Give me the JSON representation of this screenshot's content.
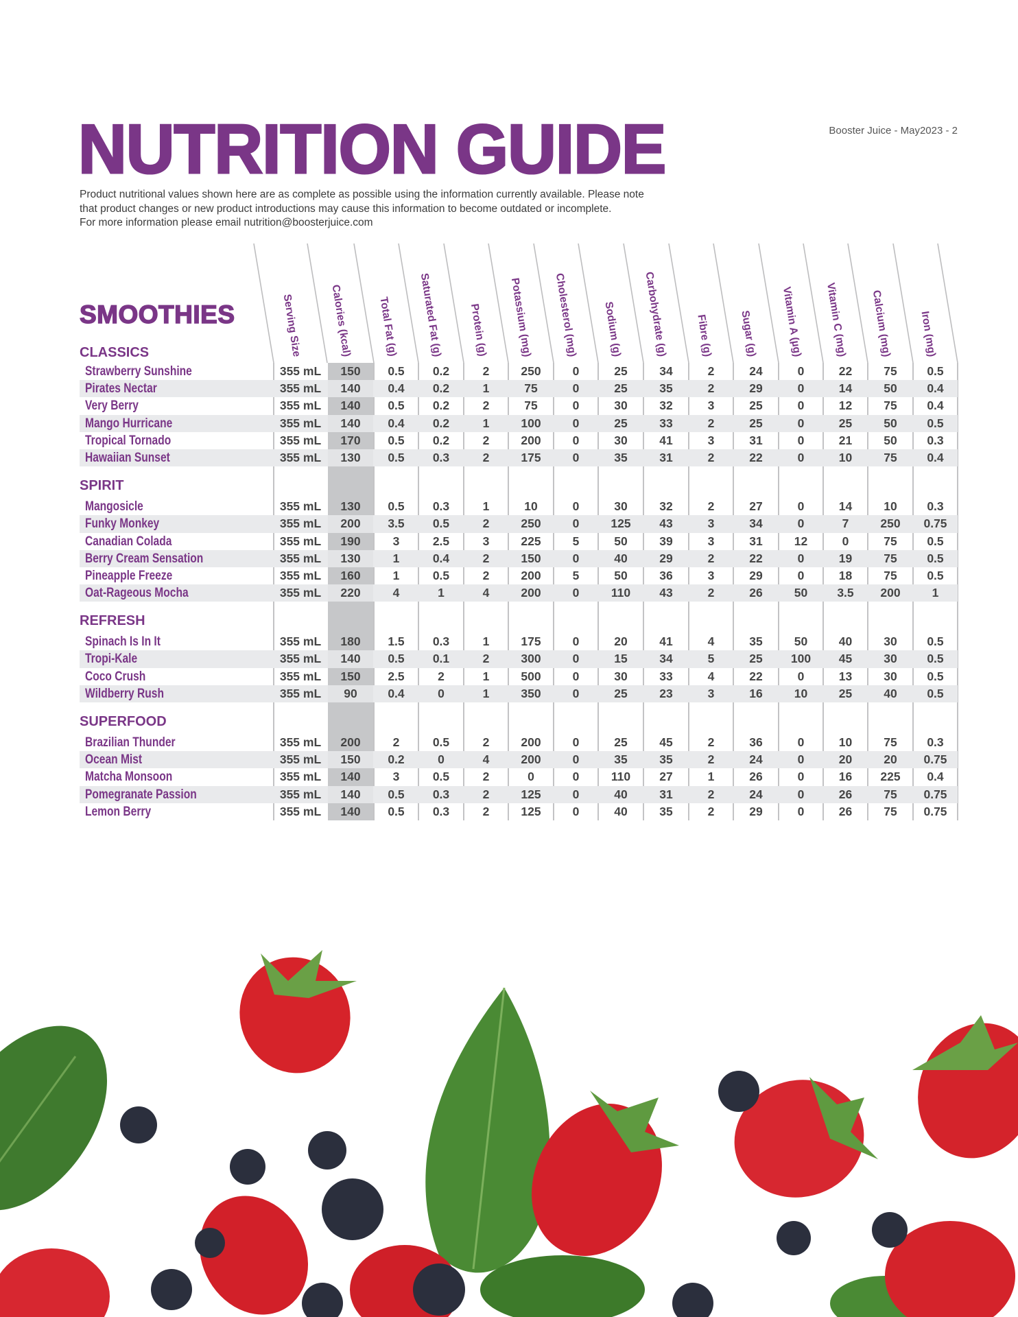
{
  "header": {
    "title": "NUTRITION GUIDE",
    "page_ref": "Booster Juice - May2023 - 2",
    "description": [
      "Product nutritional values shown here are as complete as possible using the information currently available. Please note",
      "that product changes or new product introductions may cause this information to become outdated or incomplete.",
      "For more information please email  nutrition@boosterjuice.com"
    ]
  },
  "category": "SMOOTHIES",
  "columns": [
    "Serving Size",
    "Calories (kcal)",
    "Total Fat (g)",
    "Saturated Fat (g)",
    "Protein (g)",
    "Potassium (mg)",
    "Cholesterol (mg)",
    "Sodium (g)",
    "Carbohydrate (g)",
    "Fibre (g)",
    "Sugar (g)",
    "Vitamin A (µg)",
    "Vitamin C (mg)",
    "Calcium (mg)",
    "Iron (mg)"
  ],
  "sections": [
    {
      "name": "CLASSICS",
      "rows": [
        {
          "name": "Strawberry Sunshine",
          "values": [
            "355 mL",
            "150",
            "0.5",
            "0.2",
            "2",
            "250",
            "0",
            "25",
            "34",
            "2",
            "24",
            "0",
            "22",
            "75",
            "0.5"
          ]
        },
        {
          "name": "Pirates Nectar",
          "values": [
            "355 mL",
            "140",
            "0.4",
            "0.2",
            "1",
            "75",
            "0",
            "25",
            "35",
            "2",
            "29",
            "0",
            "14",
            "50",
            "0.4"
          ]
        },
        {
          "name": "Very Berry",
          "values": [
            "355 mL",
            "140",
            "0.5",
            "0.2",
            "2",
            "75",
            "0",
            "30",
            "32",
            "3",
            "25",
            "0",
            "12",
            "75",
            "0.4"
          ]
        },
        {
          "name": "Mango Hurricane",
          "values": [
            "355 mL",
            "140",
            "0.4",
            "0.2",
            "1",
            "100",
            "0",
            "25",
            "33",
            "2",
            "25",
            "0",
            "25",
            "50",
            "0.5"
          ]
        },
        {
          "name": "Tropical Tornado",
          "values": [
            "355 mL",
            "170",
            "0.5",
            "0.2",
            "2",
            "200",
            "0",
            "30",
            "41",
            "3",
            "31",
            "0",
            "21",
            "50",
            "0.3"
          ]
        },
        {
          "name": "Hawaiian Sunset",
          "values": [
            "355 mL",
            "130",
            "0.5",
            "0.3",
            "2",
            "175",
            "0",
            "35",
            "31",
            "2",
            "22",
            "0",
            "10",
            "75",
            "0.4"
          ]
        }
      ]
    },
    {
      "name": "SPIRIT",
      "rows": [
        {
          "name": "Mangosicle",
          "values": [
            "355 mL",
            "130",
            "0.5",
            "0.3",
            "1",
            "10",
            "0",
            "30",
            "32",
            "2",
            "27",
            "0",
            "14",
            "10",
            "0.3"
          ]
        },
        {
          "name": "Funky Monkey",
          "values": [
            "355 mL",
            "200",
            "3.5",
            "0.5",
            "2",
            "250",
            "0",
            "125",
            "43",
            "3",
            "34",
            "0",
            "7",
            "250",
            "0.75"
          ]
        },
        {
          "name": "Canadian Colada",
          "values": [
            "355 mL",
            "190",
            "3",
            "2.5",
            "3",
            "225",
            "5",
            "50",
            "39",
            "3",
            "31",
            "12",
            "0",
            "75",
            "0.5"
          ]
        },
        {
          "name": "Berry Cream Sensation",
          "values": [
            "355 mL",
            "130",
            "1",
            "0.4",
            "2",
            "150",
            "0",
            "40",
            "29",
            "2",
            "22",
            "0",
            "19",
            "75",
            "0.5"
          ]
        },
        {
          "name": "Pineapple Freeze",
          "values": [
            "355 mL",
            "160",
            "1",
            "0.5",
            "2",
            "200",
            "5",
            "50",
            "36",
            "3",
            "29",
            "0",
            "18",
            "75",
            "0.5"
          ]
        },
        {
          "name": "Oat-Rageous Mocha",
          "values": [
            "355 mL",
            "220",
            "4",
            "1",
            "4",
            "200",
            "0",
            "110",
            "43",
            "2",
            "26",
            "50",
            "3.5",
            "200",
            "1"
          ]
        }
      ]
    },
    {
      "name": "REFRESH",
      "rows": [
        {
          "name": "Spinach Is In It",
          "values": [
            "355 mL",
            "180",
            "1.5",
            "0.3",
            "1",
            "175",
            "0",
            "20",
            "41",
            "4",
            "35",
            "50",
            "40",
            "30",
            "0.5"
          ]
        },
        {
          "name": "Tropi-Kale",
          "values": [
            "355 mL",
            "140",
            "0.5",
            "0.1",
            "2",
            "300",
            "0",
            "15",
            "34",
            "5",
            "25",
            "100",
            "45",
            "30",
            "0.5"
          ]
        },
        {
          "name": "Coco Crush",
          "values": [
            "355 mL",
            "150",
            "2.5",
            "2",
            "1",
            "500",
            "0",
            "30",
            "33",
            "4",
            "22",
            "0",
            "13",
            "30",
            "0.5"
          ]
        },
        {
          "name": "Wildberry Rush",
          "values": [
            "355 mL",
            "90",
            "0.4",
            "0",
            "1",
            "350",
            "0",
            "25",
            "23",
            "3",
            "16",
            "10",
            "25",
            "40",
            "0.5"
          ]
        }
      ]
    },
    {
      "name": "SUPERFOOD",
      "rows": [
        {
          "name": "Brazilian Thunder",
          "values": [
            "355 mL",
            "200",
            "2",
            "0.5",
            "2",
            "200",
            "0",
            "25",
            "45",
            "2",
            "36",
            "0",
            "10",
            "75",
            "0.3"
          ]
        },
        {
          "name": "Ocean Mist",
          "values": [
            "355 mL",
            "150",
            "0.2",
            "0",
            "4",
            "200",
            "0",
            "35",
            "35",
            "2",
            "24",
            "0",
            "20",
            "20",
            "0.75"
          ]
        },
        {
          "name": "Matcha Monsoon",
          "values": [
            "355 mL",
            "140",
            "3",
            "0.5",
            "2",
            "0",
            "0",
            "110",
            "27",
            "1",
            "26",
            "0",
            "16",
            "225",
            "0.4"
          ]
        },
        {
          "name": "Pomegranate Passion",
          "values": [
            "355 mL",
            "140",
            "0.5",
            "0.3",
            "2",
            "125",
            "0",
            "40",
            "31",
            "2",
            "24",
            "0",
            "26",
            "75",
            "0.75"
          ]
        },
        {
          "name": "Lemon Berry",
          "values": [
            "355 mL",
            "140",
            "0.5",
            "0.3",
            "2",
            "125",
            "0",
            "40",
            "35",
            "2",
            "29",
            "0",
            "26",
            "75",
            "0.75"
          ]
        }
      ]
    }
  ],
  "colors": {
    "brand_purple": "#7a3687",
    "value_text": "#454545",
    "stripe": "#e9eaec",
    "calorie_column": "#c6c7c9"
  },
  "decorative_image": "strawberries, blueberries and basil leaves"
}
